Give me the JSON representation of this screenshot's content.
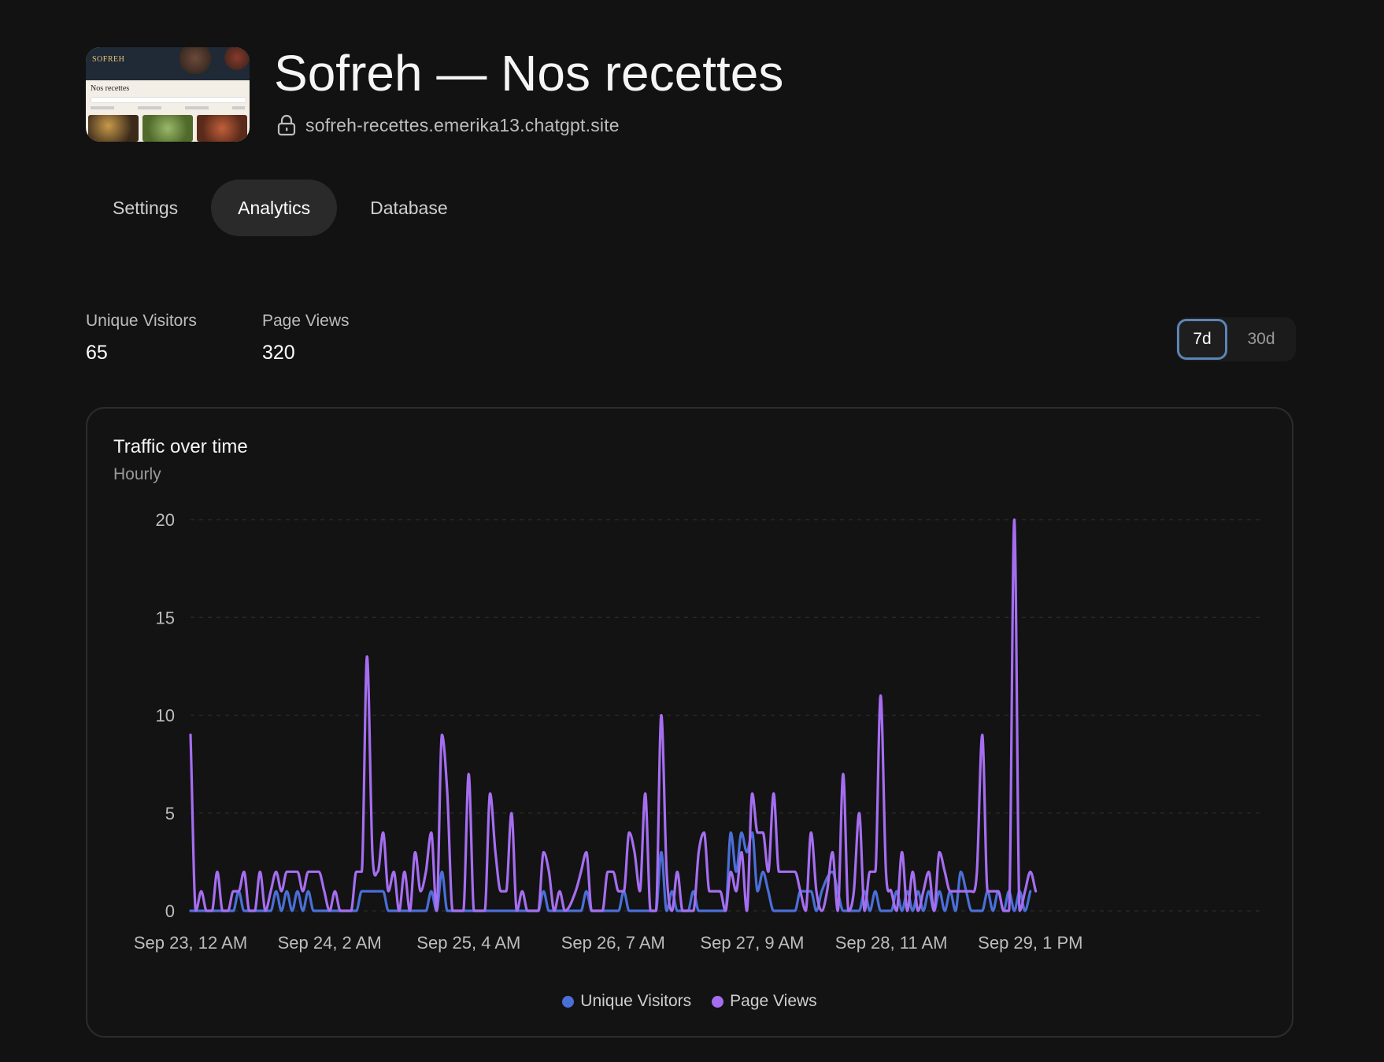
{
  "site": {
    "thumbnail": {
      "brand": "SOFREH",
      "heading": "Nos recettes"
    },
    "title": "Sofreh — Nos recettes",
    "url": "sofreh-recettes.emerika13.chatgpt.site"
  },
  "tabs": [
    {
      "label": "Settings",
      "active": false
    },
    {
      "label": "Analytics",
      "active": true
    },
    {
      "label": "Database",
      "active": false
    }
  ],
  "stats": {
    "unique_visitors": {
      "label": "Unique Visitors",
      "value": "65"
    },
    "page_views": {
      "label": "Page Views",
      "value": "320"
    }
  },
  "range": {
    "options": [
      "7d",
      "30d"
    ],
    "selected": "7d"
  },
  "chart_data": {
    "type": "line",
    "title": "Traffic over time",
    "subtitle": "Hourly",
    "ylim": [
      0,
      20
    ],
    "y_ticks": [
      0,
      5,
      10,
      15,
      20
    ],
    "x_tick_labels": [
      "Sep 23, 12 AM",
      "Sep 24, 2 AM",
      "Sep 25, 4 AM",
      "Sep 26, 7 AM",
      "Sep 27, 9 AM",
      "Sep 28, 11 AM",
      "Sep 29, 1 PM"
    ],
    "x_tick_hours": [
      0,
      26,
      52,
      79,
      105,
      131,
      157
    ],
    "grid": true,
    "legend_position": "bottom-center",
    "series": [
      {
        "name": "Unique Visitors",
        "color": "#4a6fd8",
        "points": [
          [
            0,
            0
          ],
          [
            8,
            0
          ],
          [
            9,
            1
          ],
          [
            10,
            0
          ],
          [
            15,
            0
          ],
          [
            16,
            1
          ],
          [
            17,
            0
          ],
          [
            18,
            1
          ],
          [
            19,
            0
          ],
          [
            20,
            1
          ],
          [
            21,
            0
          ],
          [
            22,
            1
          ],
          [
            23,
            0
          ],
          [
            31,
            0
          ],
          [
            32,
            1
          ],
          [
            36,
            1
          ],
          [
            37,
            0
          ],
          [
            44,
            0
          ],
          [
            45,
            1
          ],
          [
            46,
            0
          ],
          [
            47,
            2
          ],
          [
            48,
            0
          ],
          [
            65,
            0
          ],
          [
            66,
            1
          ],
          [
            67,
            0
          ],
          [
            73,
            0
          ],
          [
            74,
            1
          ],
          [
            75,
            0
          ],
          [
            80,
            0
          ],
          [
            81,
            1
          ],
          [
            82,
            0
          ],
          [
            87,
            0
          ],
          [
            88,
            3
          ],
          [
            89,
            0
          ],
          [
            90,
            1
          ],
          [
            91,
            0
          ],
          [
            93,
            0
          ],
          [
            94,
            1
          ],
          [
            95,
            0
          ],
          [
            100,
            0
          ],
          [
            101,
            4
          ],
          [
            102,
            2
          ],
          [
            103,
            4
          ],
          [
            104,
            3
          ],
          [
            105,
            4
          ],
          [
            106,
            1
          ],
          [
            107,
            2
          ],
          [
            108,
            1
          ],
          [
            109,
            0
          ],
          [
            113,
            0
          ],
          [
            114,
            1
          ],
          [
            116,
            1
          ],
          [
            117,
            0
          ],
          [
            118,
            1
          ],
          [
            120,
            2
          ],
          [
            121,
            1
          ],
          [
            122,
            0
          ],
          [
            125,
            0
          ],
          [
            126,
            1
          ],
          [
            127,
            0
          ],
          [
            128,
            1
          ],
          [
            129,
            0
          ],
          [
            131,
            0
          ],
          [
            132,
            1
          ],
          [
            133,
            0
          ],
          [
            134,
            1
          ],
          [
            135,
            0
          ],
          [
            136,
            1
          ],
          [
            137,
            0
          ],
          [
            138,
            1
          ],
          [
            139,
            0
          ],
          [
            140,
            1
          ],
          [
            141,
            0
          ],
          [
            142,
            1
          ],
          [
            143,
            0
          ],
          [
            144,
            2
          ],
          [
            145,
            1
          ],
          [
            146,
            0
          ],
          [
            148,
            0
          ],
          [
            149,
            1
          ],
          [
            150,
            0
          ],
          [
            151,
            1
          ],
          [
            152,
            0
          ],
          [
            153,
            1
          ],
          [
            154,
            0
          ],
          [
            155,
            1
          ],
          [
            156,
            0
          ],
          [
            157,
            1
          ]
        ]
      },
      {
        "name": "Page Views",
        "color": "#a56ef0",
        "points": [
          [
            0,
            9
          ],
          [
            1,
            0
          ],
          [
            2,
            1
          ],
          [
            3,
            0
          ],
          [
            4,
            0
          ],
          [
            5,
            2
          ],
          [
            6,
            0
          ],
          [
            7,
            0
          ],
          [
            8,
            1
          ],
          [
            9,
            1
          ],
          [
            10,
            2
          ],
          [
            11,
            0
          ],
          [
            12,
            0
          ],
          [
            13,
            2
          ],
          [
            14,
            0
          ],
          [
            15,
            1
          ],
          [
            16,
            2
          ],
          [
            17,
            1
          ],
          [
            18,
            2
          ],
          [
            19,
            2
          ],
          [
            20,
            2
          ],
          [
            21,
            1
          ],
          [
            22,
            2
          ],
          [
            23,
            2
          ],
          [
            24,
            2
          ],
          [
            25,
            1
          ],
          [
            26,
            0
          ],
          [
            27,
            1
          ],
          [
            28,
            0
          ],
          [
            30,
            0
          ],
          [
            31,
            2
          ],
          [
            32,
            2
          ],
          [
            33,
            13
          ],
          [
            34,
            3
          ],
          [
            35,
            2
          ],
          [
            36,
            4
          ],
          [
            37,
            1
          ],
          [
            38,
            2
          ],
          [
            39,
            0
          ],
          [
            40,
            2
          ],
          [
            41,
            0
          ],
          [
            42,
            3
          ],
          [
            43,
            1
          ],
          [
            44,
            2
          ],
          [
            45,
            4
          ],
          [
            46,
            0
          ],
          [
            47,
            9
          ],
          [
            48,
            6
          ],
          [
            49,
            0
          ],
          [
            51,
            0
          ],
          [
            52,
            7
          ],
          [
            53,
            0
          ],
          [
            55,
            0
          ],
          [
            56,
            6
          ],
          [
            57,
            3
          ],
          [
            58,
            1
          ],
          [
            59,
            1
          ],
          [
            60,
            5
          ],
          [
            61,
            0
          ],
          [
            62,
            1
          ],
          [
            63,
            0
          ],
          [
            65,
            0
          ],
          [
            66,
            3
          ],
          [
            67,
            2
          ],
          [
            68,
            0
          ],
          [
            69,
            1
          ],
          [
            70,
            0
          ],
          [
            72,
            1
          ],
          [
            73,
            2
          ],
          [
            74,
            3
          ],
          [
            75,
            0
          ],
          [
            77,
            0
          ],
          [
            78,
            2
          ],
          [
            79,
            2
          ],
          [
            80,
            1
          ],
          [
            81,
            1
          ],
          [
            82,
            4
          ],
          [
            83,
            3
          ],
          [
            84,
            1
          ],
          [
            85,
            6
          ],
          [
            86,
            0
          ],
          [
            87,
            0
          ],
          [
            88,
            10
          ],
          [
            89,
            2
          ],
          [
            90,
            0
          ],
          [
            91,
            2
          ],
          [
            92,
            0
          ],
          [
            93,
            0
          ],
          [
            94,
            0
          ],
          [
            95,
            3
          ],
          [
            96,
            4
          ],
          [
            97,
            1
          ],
          [
            98,
            1
          ],
          [
            99,
            1
          ],
          [
            100,
            0
          ],
          [
            101,
            2
          ],
          [
            102,
            1
          ],
          [
            103,
            3
          ],
          [
            104,
            0
          ],
          [
            105,
            6
          ],
          [
            106,
            4
          ],
          [
            107,
            4
          ],
          [
            108,
            2
          ],
          [
            109,
            6
          ],
          [
            110,
            2
          ],
          [
            111,
            2
          ],
          [
            112,
            2
          ],
          [
            113,
            2
          ],
          [
            114,
            1
          ],
          [
            115,
            0
          ],
          [
            116,
            4
          ],
          [
            117,
            1
          ],
          [
            118,
            0
          ],
          [
            119,
            1
          ],
          [
            120,
            3
          ],
          [
            121,
            0
          ],
          [
            122,
            7
          ],
          [
            123,
            0
          ],
          [
            124,
            1
          ],
          [
            125,
            5
          ],
          [
            126,
            0
          ],
          [
            127,
            2
          ],
          [
            128,
            2
          ],
          [
            129,
            11
          ],
          [
            130,
            2
          ],
          [
            131,
            1
          ],
          [
            132,
            0
          ],
          [
            133,
            3
          ],
          [
            134,
            0
          ],
          [
            135,
            2
          ],
          [
            136,
            0
          ],
          [
            137,
            1
          ],
          [
            138,
            2
          ],
          [
            139,
            0
          ],
          [
            140,
            3
          ],
          [
            141,
            2
          ],
          [
            142,
            1
          ],
          [
            143,
            1
          ],
          [
            144,
            1
          ],
          [
            145,
            1
          ],
          [
            146,
            1
          ],
          [
            147,
            2
          ],
          [
            148,
            9
          ],
          [
            149,
            1
          ],
          [
            150,
            1
          ],
          [
            151,
            1
          ],
          [
            152,
            0
          ],
          [
            153,
            0
          ],
          [
            154,
            20
          ],
          [
            155,
            0
          ],
          [
            156,
            1
          ],
          [
            157,
            2
          ],
          [
            158,
            1
          ]
        ]
      }
    ]
  }
}
